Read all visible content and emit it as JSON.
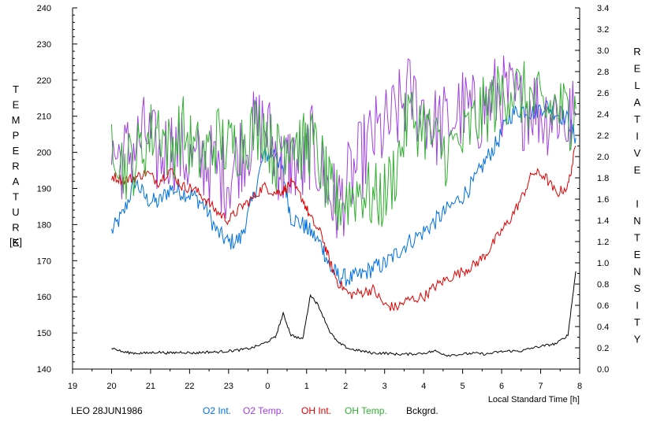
{
  "chart_data": {
    "type": "line",
    "title": "",
    "xlabel": "Local Standard Time [h]",
    "ylabel_left": "TEMPERATURE",
    "ylabel_left_unit": "[K]",
    "ylabel_right": "RELATIVE INTENSITY",
    "xlim": [
      19,
      8
    ],
    "x_ticks": [
      "19",
      "20",
      "21",
      "22",
      "23",
      "0",
      "1",
      "2",
      "3",
      "4",
      "5",
      "6",
      "7",
      "8"
    ],
    "ylim_left": [
      140,
      240
    ],
    "y_ticks_left": [
      "140",
      "150",
      "160",
      "170",
      "180",
      "190",
      "200",
      "210",
      "220",
      "230",
      "240"
    ],
    "ylim_right": [
      0.0,
      3.4
    ],
    "y_ticks_right": [
      "0.0",
      "0.2",
      "0.4",
      "0.6",
      "0.8",
      "1.0",
      "1.2",
      "1.4",
      "1.6",
      "1.8",
      "2.0",
      "2.2",
      "2.4",
      "2.6",
      "2.8",
      "3.0",
      "3.2",
      "3.4"
    ],
    "grid": false,
    "legend_placement": "bottom",
    "station_label": "LEO 28JUN1986",
    "series": [
      {
        "name": "O2 Int.",
        "axis": "left",
        "color": "#0070e0",
        "points": [
          [
            20.0,
            178
          ],
          [
            20.3,
            183
          ],
          [
            20.6,
            192
          ],
          [
            20.9,
            187
          ],
          [
            21.2,
            186
          ],
          [
            21.5,
            190
          ],
          [
            21.8,
            189
          ],
          [
            22.1,
            188
          ],
          [
            22.4,
            185
          ],
          [
            22.7,
            178
          ],
          [
            23.0,
            175
          ],
          [
            23.3,
            176
          ],
          [
            23.6,
            186
          ],
          [
            23.9,
            199
          ],
          [
            24.2,
            200
          ],
          [
            24.4,
            194
          ],
          [
            24.6,
            182
          ],
          [
            24.9,
            180
          ],
          [
            25.1,
            178
          ],
          [
            25.4,
            174
          ],
          [
            25.6,
            168
          ],
          [
            25.8,
            166
          ],
          [
            26.1,
            165
          ],
          [
            26.4,
            166
          ],
          [
            26.7,
            168
          ],
          [
            27.0,
            169
          ],
          [
            27.3,
            172
          ],
          [
            27.6,
            175
          ],
          [
            28.0,
            178
          ],
          [
            28.3,
            181
          ],
          [
            28.6,
            184
          ],
          [
            29.0,
            188
          ],
          [
            29.3,
            192
          ],
          [
            29.6,
            198
          ],
          [
            29.9,
            203
          ],
          [
            30.2,
            210
          ],
          [
            30.5,
            212
          ],
          [
            30.8,
            211
          ],
          [
            31.1,
            213
          ],
          [
            31.4,
            211
          ],
          [
            31.7,
            209
          ],
          [
            31.9,
            204
          ]
        ]
      },
      {
        "name": "O2 Temp.",
        "axis": "left",
        "color": "#a040e0",
        "points": [
          [
            20.0,
            200
          ],
          [
            20.3,
            198
          ],
          [
            20.6,
            202
          ],
          [
            20.9,
            205
          ],
          [
            21.2,
            198
          ],
          [
            21.5,
            202
          ],
          [
            21.8,
            200
          ],
          [
            22.1,
            196
          ],
          [
            22.4,
            198
          ],
          [
            22.7,
            195
          ],
          [
            23.0,
            193
          ],
          [
            23.3,
            200
          ],
          [
            23.6,
            205
          ],
          [
            23.9,
            208
          ],
          [
            24.2,
            200
          ],
          [
            24.4,
            195
          ],
          [
            24.6,
            198
          ],
          [
            24.9,
            195
          ],
          [
            25.1,
            202
          ],
          [
            25.4,
            195
          ],
          [
            25.6,
            188
          ],
          [
            25.8,
            185
          ],
          [
            26.1,
            192
          ],
          [
            26.4,
            198
          ],
          [
            26.7,
            204
          ],
          [
            27.0,
            206
          ],
          [
            27.3,
            210
          ],
          [
            27.6,
            216
          ],
          [
            28.0,
            212
          ],
          [
            28.3,
            207
          ],
          [
            28.6,
            208
          ],
          [
            29.0,
            212
          ],
          [
            29.3,
            210
          ],
          [
            29.6,
            213
          ],
          [
            29.9,
            216
          ],
          [
            30.2,
            215
          ],
          [
            30.5,
            212
          ],
          [
            30.8,
            214
          ],
          [
            31.1,
            210
          ],
          [
            31.4,
            212
          ],
          [
            31.7,
            208
          ],
          [
            31.9,
            210
          ]
        ]
      },
      {
        "name": "OH Int.",
        "axis": "right",
        "color": "#e00000",
        "points": [
          [
            20.0,
            1.82
          ],
          [
            20.3,
            1.78
          ],
          [
            20.6,
            1.8
          ],
          [
            20.9,
            1.85
          ],
          [
            21.2,
            1.76
          ],
          [
            21.5,
            1.88
          ],
          [
            21.8,
            1.72
          ],
          [
            22.1,
            1.7
          ],
          [
            22.4,
            1.6
          ],
          [
            22.7,
            1.48
          ],
          [
            23.0,
            1.4
          ],
          [
            23.3,
            1.52
          ],
          [
            23.6,
            1.6
          ],
          [
            23.9,
            1.72
          ],
          [
            24.2,
            1.66
          ],
          [
            24.4,
            1.68
          ],
          [
            24.6,
            1.75
          ],
          [
            24.9,
            1.6
          ],
          [
            25.1,
            1.42
          ],
          [
            25.4,
            1.25
          ],
          [
            25.6,
            1.0
          ],
          [
            25.8,
            0.82
          ],
          [
            26.1,
            0.7
          ],
          [
            26.4,
            0.72
          ],
          [
            26.7,
            0.75
          ],
          [
            27.0,
            0.6
          ],
          [
            27.3,
            0.58
          ],
          [
            27.6,
            0.65
          ],
          [
            28.0,
            0.68
          ],
          [
            28.3,
            0.78
          ],
          [
            28.6,
            0.85
          ],
          [
            29.0,
            0.92
          ],
          [
            29.3,
            0.98
          ],
          [
            29.6,
            1.08
          ],
          [
            29.9,
            1.25
          ],
          [
            30.2,
            1.4
          ],
          [
            30.5,
            1.6
          ],
          [
            30.8,
            1.85
          ],
          [
            31.1,
            1.82
          ],
          [
            31.4,
            1.65
          ],
          [
            31.7,
            1.72
          ],
          [
            31.9,
            2.1
          ]
        ]
      },
      {
        "name": "OH Temp.",
        "axis": "left",
        "color": "#30b030",
        "points": [
          [
            20.0,
            207
          ],
          [
            20.3,
            196
          ],
          [
            20.6,
            198
          ],
          [
            20.9,
            203
          ],
          [
            21.2,
            208
          ],
          [
            21.5,
            200
          ],
          [
            21.8,
            207
          ],
          [
            22.1,
            200
          ],
          [
            22.4,
            199
          ],
          [
            22.7,
            204
          ],
          [
            23.0,
            201
          ],
          [
            23.3,
            203
          ],
          [
            23.6,
            206
          ],
          [
            23.9,
            208
          ],
          [
            24.2,
            198
          ],
          [
            24.4,
            203
          ],
          [
            24.6,
            205
          ],
          [
            24.9,
            201
          ],
          [
            25.1,
            203
          ],
          [
            25.4,
            196
          ],
          [
            25.6,
            188
          ],
          [
            25.8,
            186
          ],
          [
            26.1,
            188
          ],
          [
            26.4,
            190
          ],
          [
            26.7,
            187
          ],
          [
            27.0,
            188
          ],
          [
            27.3,
            196
          ],
          [
            27.6,
            210
          ],
          [
            28.0,
            208
          ],
          [
            28.3,
            202
          ],
          [
            28.6,
            200
          ],
          [
            29.0,
            203
          ],
          [
            29.3,
            208
          ],
          [
            29.6,
            212
          ],
          [
            29.9,
            215
          ],
          [
            30.2,
            218
          ],
          [
            30.5,
            216
          ],
          [
            30.8,
            214
          ],
          [
            31.1,
            211
          ],
          [
            31.4,
            213
          ],
          [
            31.7,
            210
          ],
          [
            31.9,
            212
          ]
        ]
      },
      {
        "name": "Bckgrd.",
        "axis": "right",
        "color": "#000000",
        "points": [
          [
            20.0,
            0.2
          ],
          [
            20.3,
            0.16
          ],
          [
            20.6,
            0.15
          ],
          [
            20.9,
            0.15
          ],
          [
            21.2,
            0.16
          ],
          [
            21.5,
            0.15
          ],
          [
            21.8,
            0.16
          ],
          [
            22.1,
            0.15
          ],
          [
            22.4,
            0.16
          ],
          [
            22.7,
            0.16
          ],
          [
            23.0,
            0.17
          ],
          [
            23.3,
            0.18
          ],
          [
            23.6,
            0.2
          ],
          [
            23.9,
            0.24
          ],
          [
            24.2,
            0.3
          ],
          [
            24.4,
            0.52
          ],
          [
            24.6,
            0.32
          ],
          [
            24.9,
            0.28
          ],
          [
            25.1,
            0.7
          ],
          [
            25.3,
            0.6
          ],
          [
            25.6,
            0.35
          ],
          [
            25.8,
            0.25
          ],
          [
            26.1,
            0.19
          ],
          [
            26.4,
            0.17
          ],
          [
            26.7,
            0.15
          ],
          [
            27.0,
            0.15
          ],
          [
            27.3,
            0.14
          ],
          [
            27.6,
            0.14
          ],
          [
            28.0,
            0.15
          ],
          [
            28.3,
            0.17
          ],
          [
            28.6,
            0.13
          ],
          [
            29.0,
            0.14
          ],
          [
            29.3,
            0.15
          ],
          [
            29.6,
            0.14
          ],
          [
            29.9,
            0.16
          ],
          [
            30.2,
            0.17
          ],
          [
            30.5,
            0.17
          ],
          [
            30.8,
            0.2
          ],
          [
            31.1,
            0.22
          ],
          [
            31.4,
            0.24
          ],
          [
            31.7,
            0.32
          ],
          [
            31.9,
            0.92
          ]
        ]
      }
    ]
  }
}
